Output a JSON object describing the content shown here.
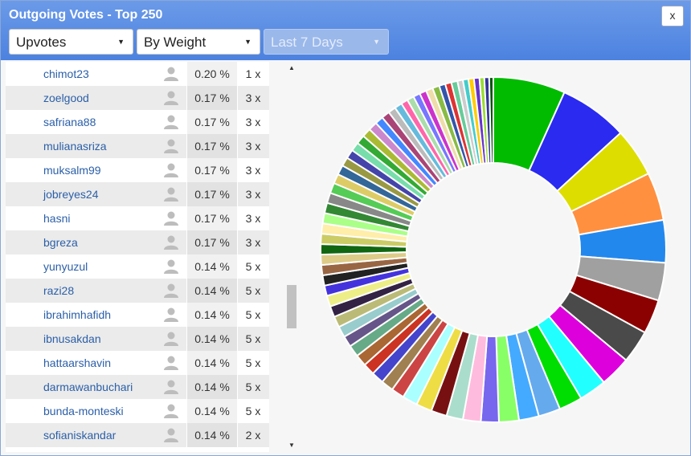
{
  "dialog": {
    "title": "Outgoing Votes - Top 250",
    "close_label": "x"
  },
  "filters": {
    "type": "Upvotes",
    "weight": "By Weight",
    "period": "Last 7 Days"
  },
  "table": {
    "rows": [
      {
        "name": "chimot23",
        "pct": "0.20 %",
        "count": "1 x"
      },
      {
        "name": "zoelgood",
        "pct": "0.17 %",
        "count": "3 x"
      },
      {
        "name": "safriana88",
        "pct": "0.17 %",
        "count": "3 x"
      },
      {
        "name": "mulianasriza",
        "pct": "0.17 %",
        "count": "3 x"
      },
      {
        "name": "muksalm99",
        "pct": "0.17 %",
        "count": "3 x"
      },
      {
        "name": "jobreyes24",
        "pct": "0.17 %",
        "count": "3 x"
      },
      {
        "name": "hasni",
        "pct": "0.17 %",
        "count": "3 x"
      },
      {
        "name": "bgreza",
        "pct": "0.17 %",
        "count": "3 x"
      },
      {
        "name": "yunyuzul",
        "pct": "0.14 %",
        "count": "5 x"
      },
      {
        "name": "razi28",
        "pct": "0.14 %",
        "count": "5 x"
      },
      {
        "name": "ibrahimhafidh",
        "pct": "0.14 %",
        "count": "5 x"
      },
      {
        "name": "ibnusakdan",
        "pct": "0.14 %",
        "count": "5 x"
      },
      {
        "name": "hattaarshavin",
        "pct": "0.14 %",
        "count": "5 x"
      },
      {
        "name": "darmawanbuchari",
        "pct": "0.14 %",
        "count": "5 x"
      },
      {
        "name": "bunda-monteski",
        "pct": "0.14 %",
        "count": "5 x"
      },
      {
        "name": "sofianiskandar",
        "pct": "0.14 %",
        "count": "2 x"
      }
    ]
  },
  "chart_data": {
    "type": "pie",
    "donut": true,
    "values": [
      10.5,
      10.0,
      7.1,
      7.0,
      6.2,
      5.5,
      5.0,
      4.8,
      4.5,
      4.0,
      3.4,
      3.2,
      2.9,
      2.9,
      2.6,
      2.6,
      2.4,
      2.3,
      2.3,
      2.2,
      1.9,
      1.8,
      1.8,
      1.7,
      1.7,
      1.7,
      1.6,
      1.6,
      1.6,
      1.6,
      1.6,
      1.5,
      1.5,
      1.5,
      1.5,
      1.5,
      1.5,
      1.5,
      1.5,
      1.5,
      1.5,
      1.5,
      1.4,
      1.4,
      1.3,
      1.3,
      1.3,
      1.3,
      1.3,
      1.3,
      1.2,
      1.2,
      1.1,
      1.1,
      1.0,
      1.0,
      1.0,
      1.0,
      1.0,
      1.0,
      0.9,
      0.9,
      0.9,
      0.8,
      0.8,
      0.8,
      0.8,
      0.7,
      0.7,
      0.6
    ],
    "colors": [
      "#00bb00",
      "#2a2af0",
      "#dddd00",
      "#ff9040",
      "#2288ee",
      "#a0a0a0",
      "#8b0000",
      "#4a4a4a",
      "#dd00dd",
      "#22ffff",
      "#00dd00",
      "#66aaee",
      "#44aaff",
      "#88ff66",
      "#7766ee",
      "#ffbbdd",
      "#aaddcc",
      "#771111",
      "#eedd44",
      "#aaffff",
      "#cc4444",
      "#a08050",
      "#4444cc",
      "#cc3322",
      "#aa6633",
      "#66aa88",
      "#665588",
      "#99cccc",
      "#bbbb77",
      "#332244",
      "#eeee88",
      "#4433dd",
      "#222222",
      "#996644",
      "#ddcc88",
      "#116611",
      "#cccc66",
      "#ffeeaa",
      "#aaff88",
      "#338833",
      "#888888",
      "#55cc55",
      "#ddcc66",
      "#336699",
      "#999944",
      "#4444aa",
      "#77ddaa",
      "#33aa33",
      "#aabb33",
      "#cc88cc",
      "#4488ff",
      "#aa4477",
      "#bbbbbb",
      "#66bbdd",
      "#ff66aa",
      "#aaddaa",
      "#7777ff",
      "#cc33cc",
      "#eeddaa",
      "#88bb44",
      "#3355aa",
      "#dd3333",
      "#66cc99",
      "#cccccc",
      "#44cccc",
      "#ffcc00",
      "#6633cc",
      "#99dd33",
      "#333399",
      "#005500"
    ]
  }
}
